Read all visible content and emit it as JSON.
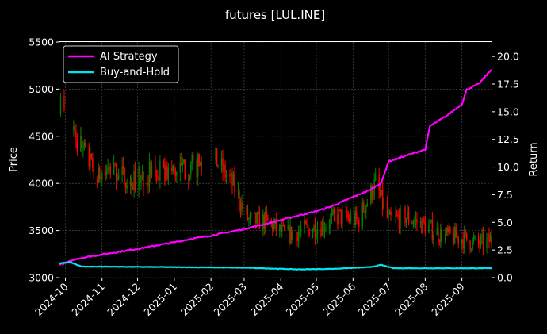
{
  "chart_data": {
    "type": "line",
    "title": "futures [LUL.INE]",
    "xlabel": "",
    "ylabel": "Price",
    "y2label": "Return",
    "ylim": [
      3000,
      5500
    ],
    "y2lim": [
      0,
      21.3
    ],
    "xlim": [
      "2024-09-26",
      "2025-09-26"
    ],
    "x_ticks": [
      "2024-10",
      "2024-11",
      "2024-12",
      "2025-01",
      "2025-02",
      "2025-03",
      "2025-04",
      "2025-05",
      "2025-06",
      "2025-07",
      "2025-08",
      "2025-09"
    ],
    "y_ticks": [
      "3000",
      "3500",
      "4000",
      "4500",
      "5000",
      "5500"
    ],
    "y2_ticks": [
      "0.0",
      "2.5",
      "5.0",
      "7.5",
      "10.0",
      "12.5",
      "15.0",
      "17.5",
      "20.0"
    ],
    "grid": true,
    "legend_placement": "top-left",
    "background": "#000000",
    "colors": {
      "up": "#008000",
      "down": "#ff0000",
      "ai": "#ff00ff",
      "bh": "#00e5ee",
      "grid": "#555555"
    },
    "candles_key_points": [
      {
        "x": "2024-09-26",
        "close": 5450
      },
      {
        "x": "2024-09-27",
        "close": 4800
      },
      {
        "x": "2024-10-18",
        "close": 4300
      },
      {
        "x": "2024-10-28",
        "close": 4050
      },
      {
        "x": "2024-11-10",
        "close": 4150
      },
      {
        "x": "2024-11-25",
        "close": 4020
      },
      {
        "x": "2024-12-10",
        "close": 4100
      },
      {
        "x": "2024-12-25",
        "close": 4120
      },
      {
        "x": "2025-01-10",
        "close": 4150
      },
      {
        "x": "2025-01-25",
        "close": 4200
      },
      {
        "x": "2025-02-05",
        "close": 4250
      },
      {
        "x": "2025-02-20",
        "close": 3980
      },
      {
        "x": "2025-03-05",
        "close": 3600
      },
      {
        "x": "2025-03-20",
        "close": 3600
      },
      {
        "x": "2025-04-05",
        "close": 3450
      },
      {
        "x": "2025-04-20",
        "close": 3500
      },
      {
        "x": "2025-05-05",
        "close": 3550
      },
      {
        "x": "2025-05-20",
        "close": 3650
      },
      {
        "x": "2025-06-05",
        "close": 3600
      },
      {
        "x": "2025-06-20",
        "close": 4000
      },
      {
        "x": "2025-07-01",
        "close": 3600
      },
      {
        "x": "2025-07-15",
        "close": 3650
      },
      {
        "x": "2025-08-01",
        "close": 3550
      },
      {
        "x": "2025-08-15",
        "close": 3450
      },
      {
        "x": "2025-09-01",
        "close": 3420
      },
      {
        "x": "2025-09-15",
        "close": 3350
      },
      {
        "x": "2025-09-26",
        "close": 3400
      }
    ],
    "candle_gaps": [
      [
        "2024-10-01",
        "2024-10-07"
      ],
      [
        "2025-01-27",
        "2025-02-04"
      ]
    ],
    "series": [
      {
        "name": "AI Strategy",
        "x": [
          "2024-09-26",
          "2024-10-01",
          "2024-10-10",
          "2024-11-01",
          "2024-12-01",
          "2025-01-01",
          "2025-01-15",
          "2025-02-01",
          "2025-02-15",
          "2025-03-01",
          "2025-04-01",
          "2025-04-15",
          "2025-05-01",
          "2025-05-15",
          "2025-06-01",
          "2025-06-15",
          "2025-06-25",
          "2025-07-01",
          "2025-07-15",
          "2025-08-01",
          "2025-08-05",
          "2025-08-20",
          "2025-09-01",
          "2025-09-05",
          "2025-09-15",
          "2025-09-26"
        ],
        "values": [
          1.2,
          1.3,
          1.7,
          2.1,
          2.6,
          3.2,
          3.5,
          3.8,
          4.1,
          4.4,
          5.2,
          5.6,
          6.0,
          6.5,
          7.3,
          7.9,
          8.6,
          10.5,
          11.0,
          11.6,
          13.7,
          14.7,
          15.7,
          17.0,
          17.5,
          18.8
        ]
      },
      {
        "name": "Buy-and-Hold",
        "x": [
          "2024-09-26",
          "2024-10-05",
          "2024-10-15",
          "2024-11-01",
          "2025-01-01",
          "2025-03-01",
          "2025-04-15",
          "2025-05-15",
          "2025-06-15",
          "2025-06-25",
          "2025-07-05",
          "2025-09-26"
        ],
        "values": [
          1.3,
          1.4,
          1.0,
          1.0,
          0.95,
          0.9,
          0.75,
          0.8,
          0.95,
          1.15,
          0.85,
          0.85
        ]
      }
    ]
  }
}
